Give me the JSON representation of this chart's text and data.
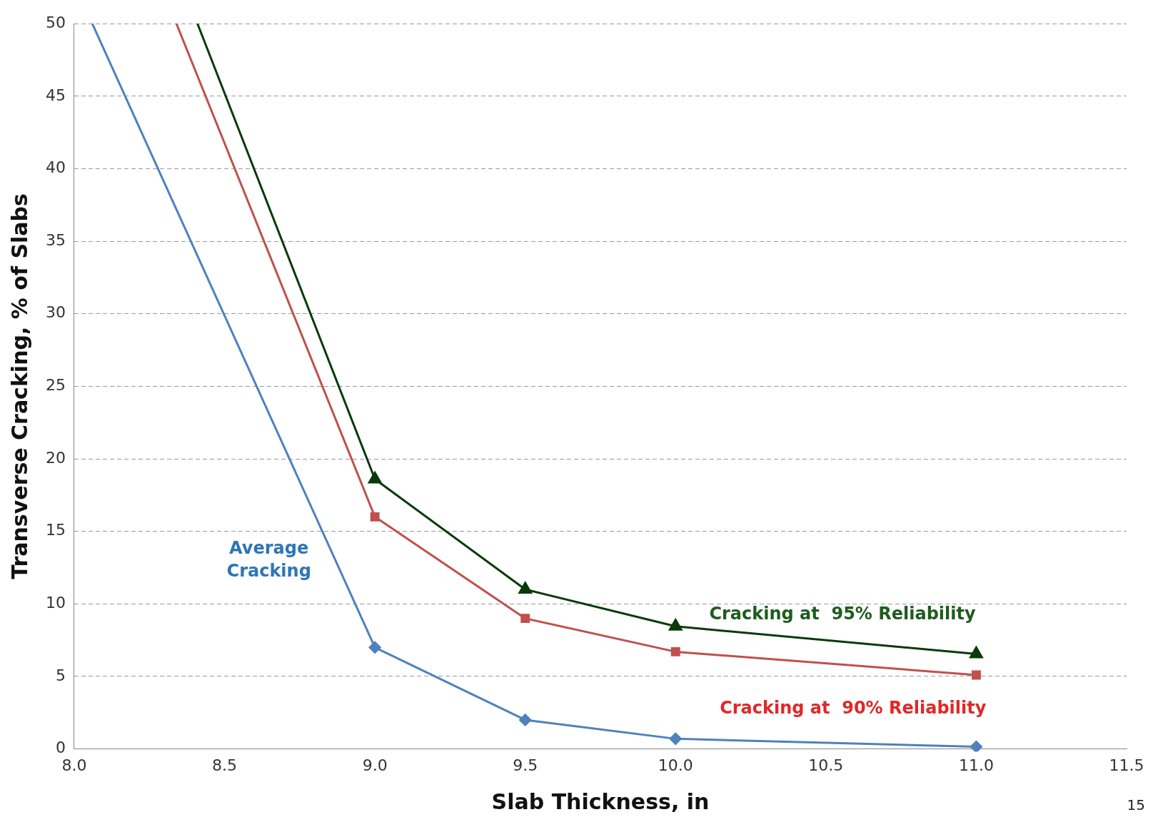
{
  "chart_data": {
    "type": "line",
    "xlabel": "Slab Thickness, in",
    "ylabel": "Transverse Cracking, % of Slabs",
    "xlim": [
      8.0,
      11.5
    ],
    "xticks": [
      {
        "value": 8.0,
        "label": "8.0"
      },
      {
        "value": 8.5,
        "label": "8.5"
      },
      {
        "value": 9.0,
        "label": "9.0"
      },
      {
        "value": 9.5,
        "label": "9.5"
      },
      {
        "value": 10.0,
        "label": "10.0"
      },
      {
        "value": 10.5,
        "label": "10.5"
      },
      {
        "value": 11.0,
        "label": "11.0"
      },
      {
        "value": 11.5,
        "label": "11.5"
      }
    ],
    "ylim": [
      0,
      50
    ],
    "yticks": [
      0,
      5,
      10,
      15,
      20,
      25,
      30,
      35,
      40,
      45,
      50
    ],
    "grid": "y",
    "legend": false,
    "series": [
      {
        "name": "Average Cracking",
        "color": "#4f81bd",
        "marker": "diamond",
        "x": [
          8.06,
          9.0,
          9.5,
          10.0,
          11.0
        ],
        "values": [
          50,
          7,
          2,
          0.7,
          0.15
        ]
      },
      {
        "name": "Cracking at  90% Reliability",
        "color": "#c0504d",
        "marker": "square",
        "x": [
          8.34,
          9.0,
          9.5,
          10.0,
          11.0
        ],
        "values": [
          50,
          16,
          9,
          6.7,
          5.1
        ]
      },
      {
        "name": "Cracking at  95% Reliability",
        "color": "#0a3a0a",
        "marker": "triangle",
        "x": [
          8.41,
          9.0,
          9.5,
          10.0,
          11.0
        ],
        "values": [
          50,
          18.6,
          11,
          8.45,
          6.55
        ]
      }
    ],
    "annotations": [
      "15"
    ]
  }
}
